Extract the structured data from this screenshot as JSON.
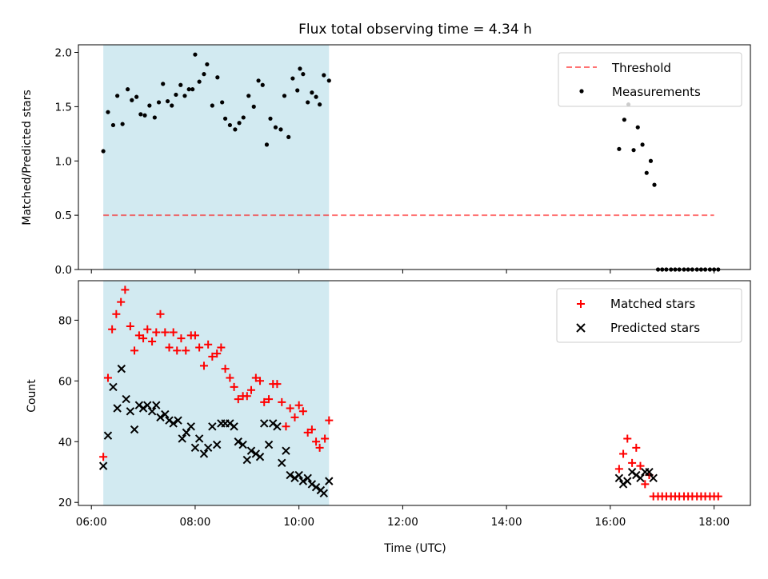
{
  "figure": {
    "title": "Flux total observing time = 4.34 h",
    "xlabel": "Time (UTC)",
    "xticks": [
      "06:00",
      "08:00",
      "10:00",
      "12:00",
      "14:00",
      "16:00",
      "18:00"
    ]
  },
  "colors": {
    "shade": "#add8e6",
    "threshold": "#ff0000",
    "measurements": "#000000",
    "matched": "#ff0000",
    "predicted": "#000000"
  },
  "chart_data": [
    {
      "type": "scatter",
      "ylabel": "Matched/Predicted stars",
      "yticks": [
        "0.0",
        "0.5",
        "1.0",
        "1.5",
        "2.0"
      ],
      "xlim": [
        5.75,
        18.7
      ],
      "ylim": [
        0,
        2.07
      ],
      "shaded_span": [
        6.23,
        10.58
      ],
      "legend": {
        "loc": "upper right",
        "labels": [
          "Threshold",
          "Measurements"
        ]
      },
      "threshold": {
        "name": "Threshold",
        "y": 0.5,
        "x": [
          6.23,
          18.0
        ]
      },
      "measurements": {
        "name": "Measurements",
        "points": [
          [
            6.23,
            1.09
          ],
          [
            6.32,
            1.45
          ],
          [
            6.42,
            1.33
          ],
          [
            6.5,
            1.6
          ],
          [
            6.6,
            1.34
          ],
          [
            6.7,
            1.66
          ],
          [
            6.78,
            1.56
          ],
          [
            6.87,
            1.59
          ],
          [
            6.95,
            1.43
          ],
          [
            7.03,
            1.42
          ],
          [
            7.12,
            1.51
          ],
          [
            7.22,
            1.4
          ],
          [
            7.3,
            1.54
          ],
          [
            7.38,
            1.71
          ],
          [
            7.47,
            1.55
          ],
          [
            7.55,
            1.51
          ],
          [
            7.63,
            1.61
          ],
          [
            7.72,
            1.7
          ],
          [
            7.8,
            1.6
          ],
          [
            7.88,
            1.66
          ],
          [
            7.95,
            1.66
          ],
          [
            8.0,
            1.98
          ],
          [
            8.08,
            1.73
          ],
          [
            8.17,
            1.8
          ],
          [
            8.23,
            1.89
          ],
          [
            8.33,
            1.51
          ],
          [
            8.43,
            1.77
          ],
          [
            8.52,
            1.54
          ],
          [
            8.58,
            1.39
          ],
          [
            8.67,
            1.33
          ],
          [
            8.77,
            1.29
          ],
          [
            8.85,
            1.35
          ],
          [
            8.93,
            1.4
          ],
          [
            9.03,
            1.6
          ],
          [
            9.13,
            1.5
          ],
          [
            9.22,
            1.74
          ],
          [
            9.3,
            1.7
          ],
          [
            9.38,
            1.15
          ],
          [
            9.45,
            1.39
          ],
          [
            9.55,
            1.31
          ],
          [
            9.65,
            1.29
          ],
          [
            9.72,
            1.6
          ],
          [
            9.8,
            1.22
          ],
          [
            9.88,
            1.76
          ],
          [
            9.97,
            1.65
          ],
          [
            10.02,
            1.85
          ],
          [
            10.08,
            1.8
          ],
          [
            10.17,
            1.54
          ],
          [
            10.25,
            1.63
          ],
          [
            10.33,
            1.59
          ],
          [
            10.4,
            1.52
          ],
          [
            10.48,
            1.79
          ],
          [
            10.58,
            1.74
          ],
          [
            16.17,
            1.11
          ],
          [
            16.27,
            1.38
          ],
          [
            16.35,
            1.52
          ],
          [
            16.45,
            1.1
          ],
          [
            16.53,
            1.31
          ],
          [
            16.62,
            1.15
          ],
          [
            16.7,
            0.89
          ],
          [
            16.78,
            1.0
          ],
          [
            16.85,
            0.78
          ],
          [
            16.92,
            0.0
          ],
          [
            17.0,
            0.0
          ],
          [
            17.08,
            0.0
          ],
          [
            17.17,
            0.0
          ],
          [
            17.25,
            0.0
          ],
          [
            17.33,
            0.0
          ],
          [
            17.42,
            0.0
          ],
          [
            17.5,
            0.0
          ],
          [
            17.58,
            0.0
          ],
          [
            17.67,
            0.0
          ],
          [
            17.75,
            0.0
          ],
          [
            17.83,
            0.0
          ],
          [
            17.92,
            0.0
          ],
          [
            18.0,
            0.0
          ],
          [
            18.08,
            0.0
          ]
        ]
      }
    },
    {
      "type": "scatter",
      "ylabel": "Count",
      "yticks": [
        "20",
        "40",
        "60",
        "80"
      ],
      "xlim": [
        5.75,
        18.7
      ],
      "ylim": [
        19,
        93
      ],
      "shaded_span": [
        6.23,
        10.58
      ],
      "legend": {
        "loc": "upper right",
        "labels": [
          "Matched stars",
          "Predicted stars"
        ]
      },
      "series": [
        {
          "name": "Matched stars",
          "marker": "plus",
          "points": [
            [
              6.23,
              35
            ],
            [
              6.32,
              61
            ],
            [
              6.4,
              77
            ],
            [
              6.48,
              82
            ],
            [
              6.57,
              86
            ],
            [
              6.65,
              90
            ],
            [
              6.75,
              78
            ],
            [
              6.83,
              70
            ],
            [
              6.92,
              75
            ],
            [
              7.0,
              74
            ],
            [
              7.08,
              77
            ],
            [
              7.17,
              73
            ],
            [
              7.25,
              76
            ],
            [
              7.33,
              82
            ],
            [
              7.42,
              76
            ],
            [
              7.5,
              71
            ],
            [
              7.58,
              76
            ],
            [
              7.65,
              70
            ],
            [
              7.73,
              74
            ],
            [
              7.82,
              70
            ],
            [
              7.92,
              75
            ],
            [
              8.0,
              75
            ],
            [
              8.08,
              71
            ],
            [
              8.17,
              65
            ],
            [
              8.25,
              72
            ],
            [
              8.33,
              68
            ],
            [
              8.42,
              69
            ],
            [
              8.5,
              71
            ],
            [
              8.58,
              64
            ],
            [
              8.67,
              61
            ],
            [
              8.75,
              58
            ],
            [
              8.83,
              54
            ],
            [
              8.92,
              55
            ],
            [
              9.0,
              55
            ],
            [
              9.08,
              57
            ],
            [
              9.17,
              61
            ],
            [
              9.25,
              60
            ],
            [
              9.33,
              53
            ],
            [
              9.42,
              54
            ],
            [
              9.5,
              59
            ],
            [
              9.58,
              59
            ],
            [
              9.67,
              53
            ],
            [
              9.75,
              45
            ],
            [
              9.83,
              51
            ],
            [
              9.92,
              48
            ],
            [
              10.0,
              52
            ],
            [
              10.08,
              50
            ],
            [
              10.17,
              43
            ],
            [
              10.25,
              44
            ],
            [
              10.33,
              40
            ],
            [
              10.4,
              38
            ],
            [
              10.5,
              41
            ],
            [
              10.58,
              47
            ],
            [
              16.17,
              31
            ],
            [
              16.25,
              36
            ],
            [
              16.33,
              41
            ],
            [
              16.42,
              33
            ],
            [
              16.5,
              38
            ],
            [
              16.58,
              32
            ],
            [
              16.67,
              26
            ],
            [
              16.75,
              29
            ],
            [
              16.83,
              22
            ],
            [
              16.92,
              22
            ],
            [
              17.0,
              22
            ],
            [
              17.08,
              22
            ],
            [
              17.17,
              22
            ],
            [
              17.25,
              22
            ],
            [
              17.33,
              22
            ],
            [
              17.42,
              22
            ],
            [
              17.5,
              22
            ],
            [
              17.58,
              22
            ],
            [
              17.67,
              22
            ],
            [
              17.75,
              22
            ],
            [
              17.83,
              22
            ],
            [
              17.92,
              22
            ],
            [
              18.0,
              22
            ],
            [
              18.08,
              22
            ]
          ]
        },
        {
          "name": "Predicted stars",
          "marker": "x",
          "points": [
            [
              6.23,
              32
            ],
            [
              6.32,
              42
            ],
            [
              6.42,
              58
            ],
            [
              6.5,
              51
            ],
            [
              6.58,
              64
            ],
            [
              6.67,
              54
            ],
            [
              6.75,
              50
            ],
            [
              6.83,
              44
            ],
            [
              6.92,
              52
            ],
            [
              7.0,
              51
            ],
            [
              7.08,
              52
            ],
            [
              7.17,
              50
            ],
            [
              7.25,
              52
            ],
            [
              7.33,
              48
            ],
            [
              7.42,
              49
            ],
            [
              7.5,
              47
            ],
            [
              7.58,
              46
            ],
            [
              7.67,
              47
            ],
            [
              7.75,
              41
            ],
            [
              7.83,
              43
            ],
            [
              7.92,
              45
            ],
            [
              8.0,
              38
            ],
            [
              8.08,
              41
            ],
            [
              8.17,
              36
            ],
            [
              8.25,
              38
            ],
            [
              8.33,
              45
            ],
            [
              8.42,
              39
            ],
            [
              8.5,
              46
            ],
            [
              8.58,
              46
            ],
            [
              8.67,
              46
            ],
            [
              8.75,
              45
            ],
            [
              8.83,
              40
            ],
            [
              8.92,
              39
            ],
            [
              9.0,
              34
            ],
            [
              9.08,
              37
            ],
            [
              9.17,
              36
            ],
            [
              9.25,
              35
            ],
            [
              9.33,
              46
            ],
            [
              9.42,
              39
            ],
            [
              9.5,
              46
            ],
            [
              9.58,
              45
            ],
            [
              9.67,
              33
            ],
            [
              9.75,
              37
            ],
            [
              9.83,
              29
            ],
            [
              9.92,
              28
            ],
            [
              10.0,
              29
            ],
            [
              10.08,
              27
            ],
            [
              10.17,
              28
            ],
            [
              10.25,
              26
            ],
            [
              10.33,
              25
            ],
            [
              10.42,
              24
            ],
            [
              10.48,
              23
            ],
            [
              10.58,
              27
            ],
            [
              16.17,
              28
            ],
            [
              16.25,
              26
            ],
            [
              16.33,
              27
            ],
            [
              16.42,
              30
            ],
            [
              16.5,
              29
            ],
            [
              16.58,
              28
            ],
            [
              16.67,
              30
            ],
            [
              16.75,
              30
            ],
            [
              16.83,
              28
            ]
          ]
        }
      ]
    }
  ]
}
